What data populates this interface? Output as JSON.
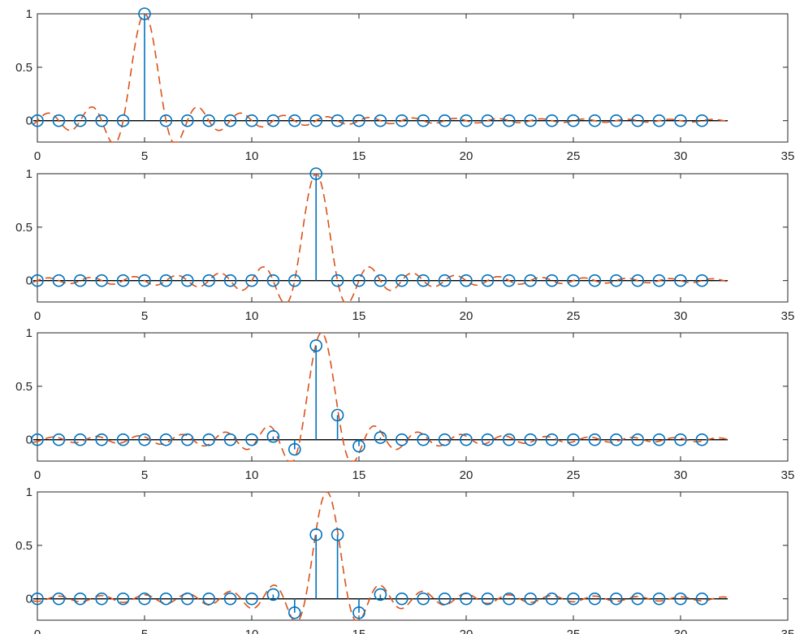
{
  "chart_data": [
    {
      "type": "stem",
      "xlim": [
        0,
        35
      ],
      "ylim": [
        -0.2,
        1
      ],
      "xticks": [
        0,
        5,
        10,
        15,
        20,
        25,
        30,
        35
      ],
      "yticks": [
        0,
        0.5,
        1
      ],
      "ytick_labels": [
        "0",
        "0.5",
        "1"
      ],
      "grid": false,
      "series": [
        {
          "kind": "stem",
          "color": "#0072BD",
          "marker": "circle",
          "x": [
            0,
            1,
            2,
            3,
            4,
            5,
            6,
            7,
            8,
            9,
            10,
            11,
            12,
            13,
            14,
            15,
            16,
            17,
            18,
            19,
            20,
            21,
            22,
            23,
            24,
            25,
            26,
            27,
            28,
            29,
            30,
            31
          ],
          "y": [
            0,
            0,
            0,
            0,
            0,
            1,
            0,
            0,
            0,
            0,
            0,
            0,
            0,
            0,
            0,
            0,
            0,
            0,
            0,
            0,
            0,
            0,
            0,
            0,
            0,
            0,
            0,
            0,
            0,
            0,
            0,
            0
          ]
        },
        {
          "kind": "interpolated-line",
          "color": "#D95319",
          "style": "dashed",
          "shift": 0
        }
      ]
    },
    {
      "type": "stem",
      "xlim": [
        0,
        35
      ],
      "ylim": [
        -0.2,
        1
      ],
      "xticks": [
        0,
        5,
        10,
        15,
        20,
        25,
        30,
        35
      ],
      "yticks": [
        0,
        0.5,
        1
      ],
      "ytick_labels": [
        "0",
        "0.5",
        "1"
      ],
      "grid": false,
      "series": [
        {
          "kind": "stem",
          "color": "#0072BD",
          "marker": "circle",
          "x": [
            0,
            1,
            2,
            3,
            4,
            5,
            6,
            7,
            8,
            9,
            10,
            11,
            12,
            13,
            14,
            15,
            16,
            17,
            18,
            19,
            20,
            21,
            22,
            23,
            24,
            25,
            26,
            27,
            28,
            29,
            30,
            31
          ],
          "y": [
            0,
            0,
            0,
            0,
            0,
            0,
            0,
            0,
            0,
            0,
            0,
            0,
            0,
            1,
            0,
            0,
            0,
            0,
            0,
            0,
            0,
            0,
            0,
            0,
            0,
            0,
            0,
            0,
            0,
            0,
            0,
            0
          ]
        },
        {
          "kind": "interpolated-line",
          "color": "#D95319",
          "style": "dashed",
          "shift": 0
        }
      ]
    },
    {
      "type": "stem",
      "xlim": [
        0,
        35
      ],
      "ylim": [
        -0.2,
        1
      ],
      "xticks": [
        0,
        5,
        10,
        15,
        20,
        25,
        30,
        35
      ],
      "yticks": [
        0,
        0.5,
        1
      ],
      "ytick_labels": [
        "0",
        "0.5",
        "1"
      ],
      "grid": false,
      "series": [
        {
          "kind": "stem",
          "color": "#0072BD",
          "marker": "circle",
          "x": [
            0,
            1,
            2,
            3,
            4,
            5,
            6,
            7,
            8,
            9,
            10,
            11,
            12,
            13,
            14,
            15,
            16,
            17,
            18,
            19,
            20,
            21,
            22,
            23,
            24,
            25,
            26,
            27,
            28,
            29,
            30,
            31
          ],
          "y": [
            0,
            0,
            0,
            0,
            0,
            0,
            0,
            0,
            0,
            0,
            0,
            0.03,
            -0.09,
            0.88,
            0.23,
            -0.06,
            0.02,
            0,
            0,
            0,
            0,
            0,
            0,
            0,
            0,
            0,
            0,
            0,
            0,
            0,
            0,
            0
          ]
        },
        {
          "kind": "interpolated-line",
          "color": "#D95319",
          "style": "dashed",
          "shift": 0.25
        }
      ]
    },
    {
      "type": "stem",
      "xlim": [
        0,
        35
      ],
      "ylim": [
        -0.2,
        1
      ],
      "xticks": [
        0,
        5,
        10,
        15,
        20,
        25,
        30,
        35
      ],
      "yticks": [
        0,
        0.5,
        1
      ],
      "ytick_labels": [
        "0",
        "0.5",
        "1"
      ],
      "grid": false,
      "series": [
        {
          "kind": "stem",
          "color": "#0072BD",
          "marker": "circle",
          "x": [
            0,
            1,
            2,
            3,
            4,
            5,
            6,
            7,
            8,
            9,
            10,
            11,
            12,
            13,
            14,
            15,
            16,
            17,
            18,
            19,
            20,
            21,
            22,
            23,
            24,
            25,
            26,
            27,
            28,
            29,
            30,
            31
          ],
          "y": [
            0,
            0,
            0,
            0,
            0,
            0,
            0,
            0,
            0,
            0,
            0,
            0.04,
            -0.13,
            0.6,
            0.6,
            -0.13,
            0.04,
            0,
            0,
            0,
            0,
            0,
            0,
            0,
            0,
            0,
            0,
            0,
            0,
            0,
            0,
            0
          ]
        },
        {
          "kind": "interpolated-line",
          "color": "#D95319",
          "style": "dashed",
          "shift": 0.5
        }
      ]
    }
  ]
}
